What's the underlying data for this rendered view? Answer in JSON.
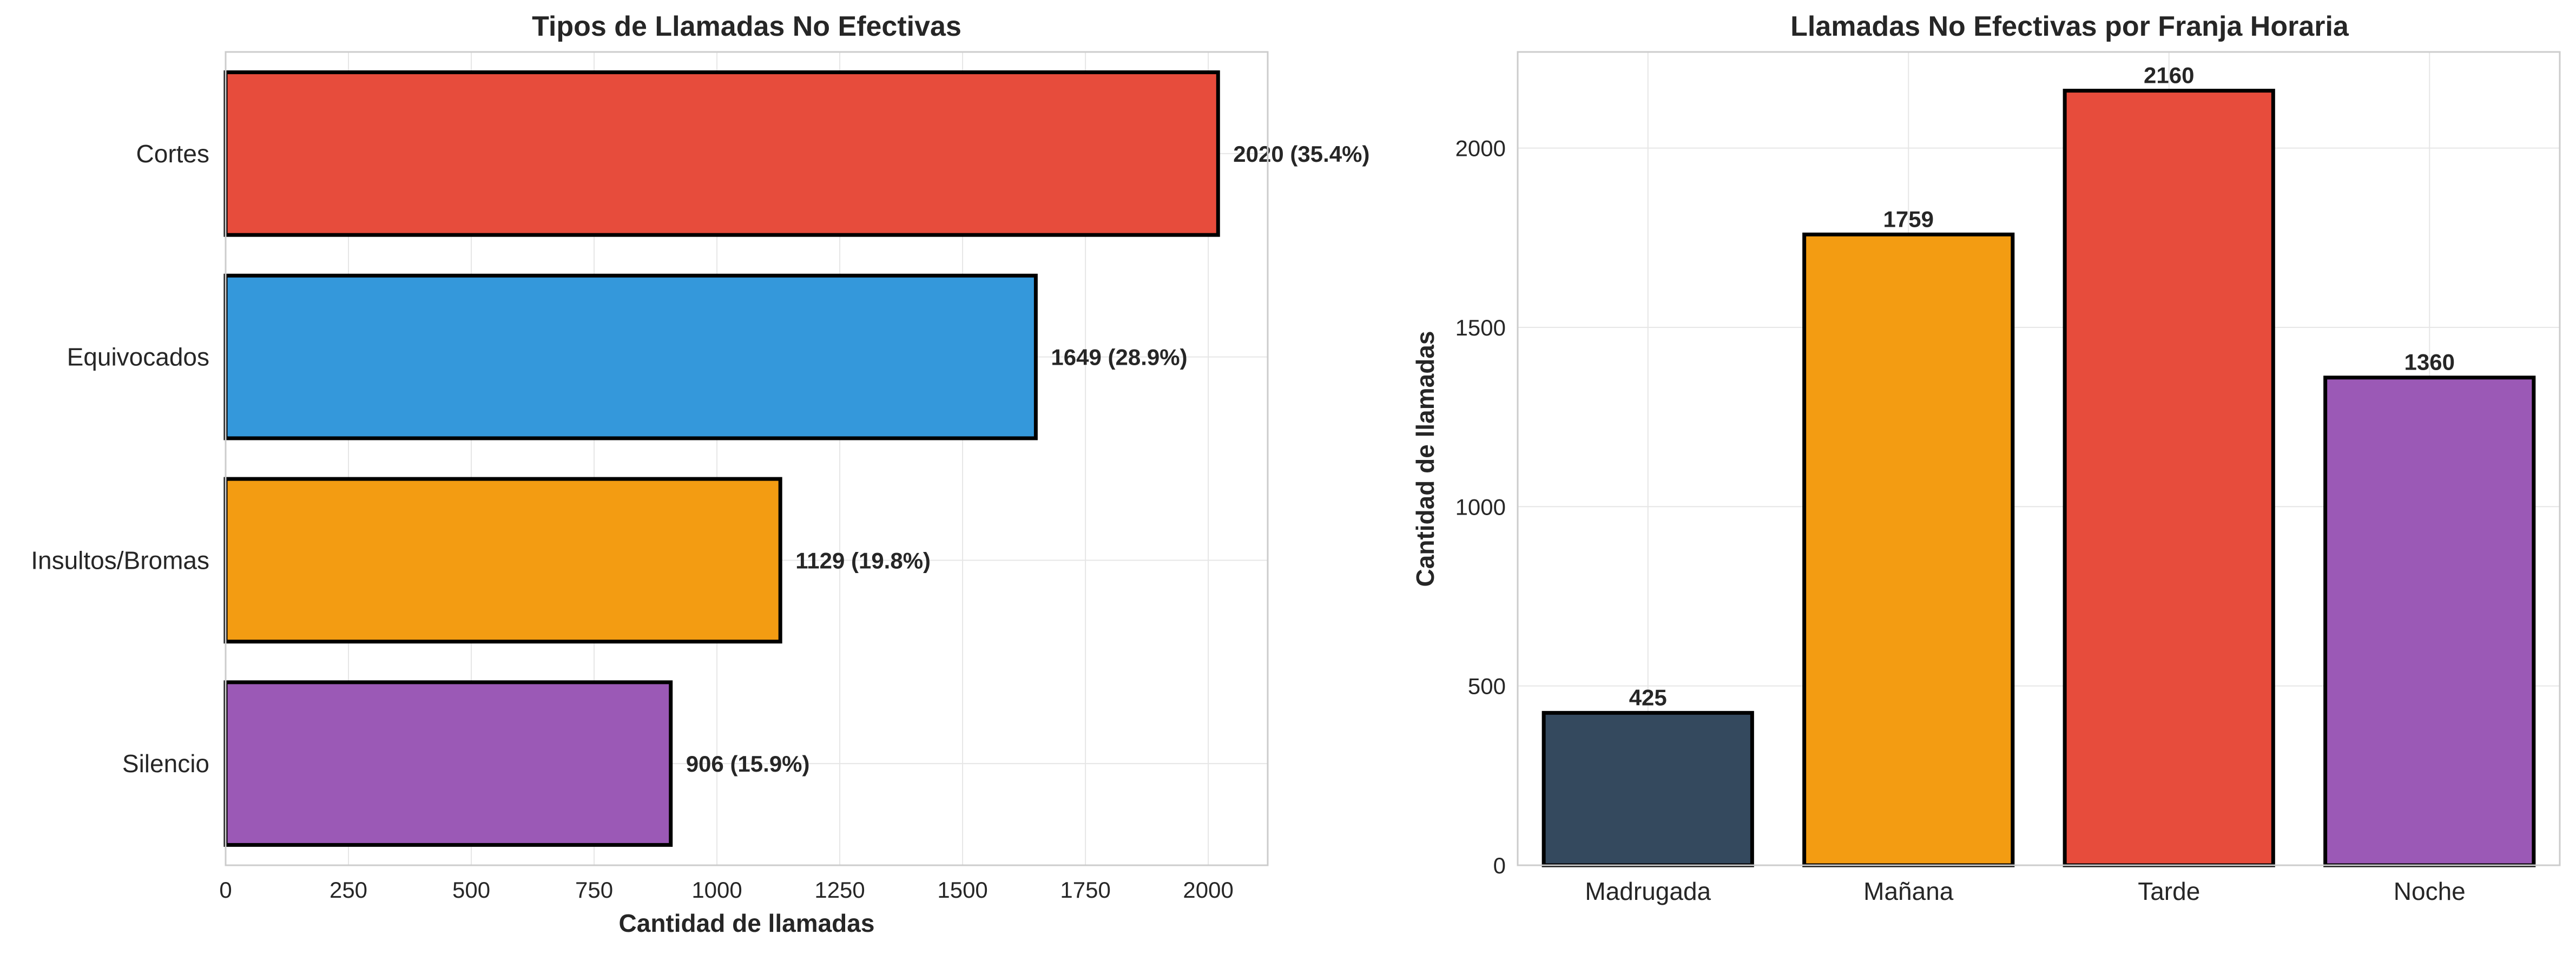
{
  "colors": {
    "background": "#ffffff",
    "grid": "#e6e6e6",
    "axis_frame": "#cccccc",
    "bar_edge": "#000000",
    "text": "#262626"
  },
  "chart_data": [
    {
      "type": "bar",
      "orientation": "horizontal",
      "title": "Tipos de Llamadas No Efectivas",
      "xlabel": "Cantidad de llamadas",
      "ylabel": "",
      "categories": [
        "Cortes",
        "Equivocados",
        "Insultos/Bromas",
        "Silencio"
      ],
      "values": [
        2020,
        1649,
        1129,
        906
      ],
      "data_labels": [
        "2020 (35.4%)",
        "1649 (28.9%)",
        "1129 (19.8%)",
        "906 (15.9%)"
      ],
      "bar_colors": [
        "#e74c3c",
        "#3498db",
        "#f39c12",
        "#9b59b6"
      ],
      "xlim": [
        0,
        2121
      ],
      "xticks": [
        0,
        250,
        500,
        750,
        1000,
        1250,
        1500,
        1750,
        2000
      ],
      "xtick_labels": [
        "0",
        "250",
        "500",
        "750",
        "1000",
        "1250",
        "1500",
        "1750",
        "2000"
      ],
      "grid": true
    },
    {
      "type": "bar",
      "orientation": "vertical",
      "title": "Llamadas No Efectivas por Franja Horaria",
      "xlabel": "",
      "ylabel": "Cantidad de llamadas",
      "categories": [
        "Madrugada",
        "Mañana",
        "Tarde",
        "Noche"
      ],
      "values": [
        425,
        1759,
        2160,
        1360
      ],
      "data_labels": [
        "425",
        "1759",
        "2160",
        "1360"
      ],
      "bar_colors": [
        "#34495e",
        "#f39c12",
        "#e74c3c",
        "#9b59b6"
      ],
      "ylim": [
        0,
        2268
      ],
      "yticks": [
        0,
        500,
        1000,
        1500,
        2000
      ],
      "ytick_labels": [
        "0",
        "500",
        "1000",
        "1500",
        "2000"
      ],
      "grid": true
    }
  ]
}
